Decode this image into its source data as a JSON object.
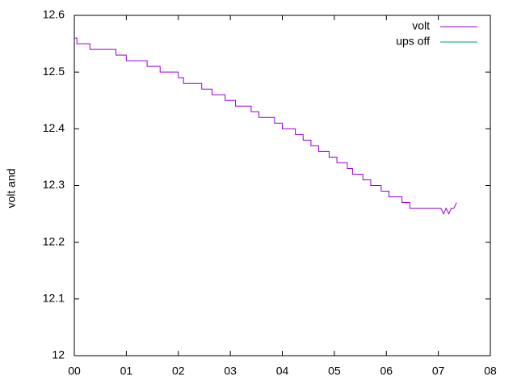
{
  "chart_data": {
    "type": "line",
    "ylabel": "volt and",
    "xlim": [
      0,
      8
    ],
    "xticks": [
      {
        "value": 0,
        "label": "00"
      },
      {
        "value": 1,
        "label": "01"
      },
      {
        "value": 2,
        "label": "02"
      },
      {
        "value": 3,
        "label": "03"
      },
      {
        "value": 4,
        "label": "04"
      },
      {
        "value": 5,
        "label": "05"
      },
      {
        "value": 6,
        "label": "06"
      },
      {
        "value": 7,
        "label": "07"
      },
      {
        "value": 8,
        "label": "08"
      }
    ],
    "ylim": [
      12,
      12.6
    ],
    "yticks": [
      12,
      12.1,
      12.2,
      12.3,
      12.4,
      12.5,
      12.6
    ],
    "legend": "top-right",
    "series": [
      {
        "name": "volt",
        "color": "#9400d3",
        "x": [
          0,
          0.05,
          0.05,
          0.3,
          0.3,
          0.8,
          0.8,
          1.0,
          1.0,
          1.4,
          1.4,
          1.65,
          1.65,
          2.0,
          2.0,
          2.1,
          2.1,
          2.45,
          2.45,
          2.65,
          2.65,
          2.9,
          2.9,
          3.1,
          3.1,
          3.4,
          3.4,
          3.55,
          3.55,
          3.85,
          3.85,
          4.0,
          4.0,
          4.25,
          4.25,
          4.4,
          4.4,
          4.55,
          4.55,
          4.7,
          4.7,
          4.9,
          4.9,
          5.05,
          5.05,
          5.25,
          5.25,
          5.35,
          5.35,
          5.55,
          5.55,
          5.7,
          5.7,
          5.9,
          5.9,
          6.05,
          6.05,
          6.3,
          6.3,
          6.45,
          6.45,
          7.05,
          7.1,
          7.15,
          7.2,
          7.25,
          7.3,
          7.35
        ],
        "values": [
          12.56,
          12.56,
          12.55,
          12.55,
          12.54,
          12.54,
          12.53,
          12.53,
          12.52,
          12.52,
          12.51,
          12.51,
          12.5,
          12.5,
          12.49,
          12.49,
          12.48,
          12.48,
          12.47,
          12.47,
          12.46,
          12.46,
          12.45,
          12.45,
          12.44,
          12.44,
          12.43,
          12.43,
          12.42,
          12.42,
          12.41,
          12.41,
          12.4,
          12.4,
          12.39,
          12.39,
          12.38,
          12.38,
          12.37,
          12.37,
          12.36,
          12.36,
          12.35,
          12.35,
          12.34,
          12.34,
          12.33,
          12.33,
          12.32,
          12.32,
          12.31,
          12.31,
          12.3,
          12.3,
          12.29,
          12.29,
          12.28,
          12.28,
          12.27,
          12.27,
          12.26,
          12.26,
          12.25,
          12.26,
          12.25,
          12.26,
          12.26,
          12.27
        ]
      },
      {
        "name": "ups off",
        "color": "#009e73",
        "x": [],
        "values": []
      }
    ]
  }
}
